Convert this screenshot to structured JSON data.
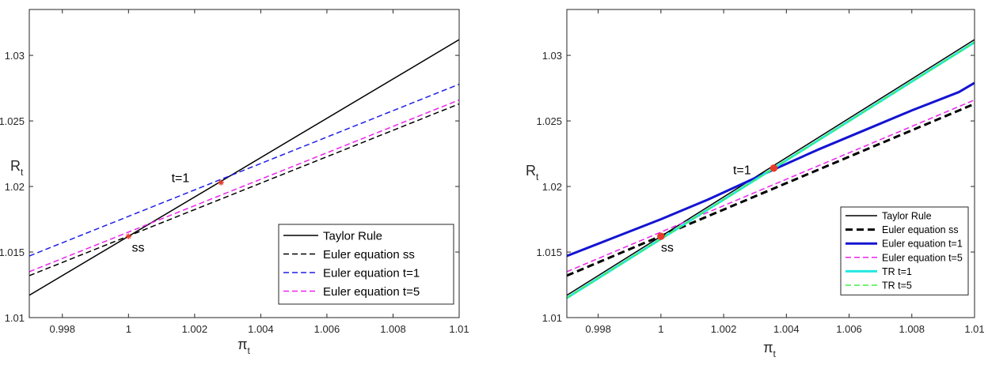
{
  "chart_data": [
    {
      "type": "line",
      "xlabel": "π",
      "xlabel_sub": "t",
      "ylabel": "R",
      "ylabel_sub": "t",
      "xlim": [
        0.997,
        1.01
      ],
      "ylim": [
        1.01,
        1.0335
      ],
      "xticks": [
        0.998,
        1,
        1.002,
        1.004,
        1.006,
        1.008,
        1.01
      ],
      "xtick_labels": [
        "0.998",
        "1",
        "1.002",
        "1.004",
        "1.006",
        "1.008",
        "1.01"
      ],
      "yticks": [
        1.01,
        1.015,
        1.02,
        1.025,
        1.03
      ],
      "ytick_labels": [
        "1.01",
        "1.015",
        "1.02",
        "1.025",
        "1.03"
      ],
      "grid": false,
      "legend_position": "bottom-right",
      "series": [
        {
          "name": "Taylor Rule",
          "color": "#000000",
          "style": "solid",
          "width": 1.5,
          "x": [
            0.997,
            1.01
          ],
          "y": [
            1.0117,
            1.0312
          ]
        },
        {
          "name": "Euler equation ss",
          "color": "#000000",
          "style": "dashed",
          "width": 1.5,
          "x": [
            0.997,
            1.01
          ],
          "y": [
            1.0132,
            1.0263
          ]
        },
        {
          "name": "Euler equation t=1",
          "color": "#1f1fe6",
          "style": "dashed",
          "width": 1.5,
          "x": [
            0.997,
            1.01
          ],
          "y": [
            1.0147,
            1.0278
          ]
        },
        {
          "name": "Euler equation t=5",
          "color": "#ee22ee",
          "style": "dashed",
          "width": 1.5,
          "x": [
            0.997,
            1.01
          ],
          "y": [
            1.0135,
            1.0266
          ]
        }
      ],
      "markers": [
        {
          "x": 1.0,
          "y": 1.0162,
          "color": "#e8392b",
          "symbol": "asterisk"
        },
        {
          "x": 1.0028,
          "y": 1.0203,
          "color": "#e8392b",
          "symbol": "asterisk"
        }
      ],
      "annotations": [
        {
          "text": "ss",
          "x": 1.0001,
          "y": 1.0154
        },
        {
          "text": "t=1",
          "x": 1.0013,
          "y": 1.0207
        }
      ]
    },
    {
      "type": "line",
      "xlabel": "π",
      "xlabel_sub": "t",
      "ylabel": "R",
      "ylabel_sub": "t",
      "xlim": [
        0.997,
        1.01
      ],
      "ylim": [
        1.01,
        1.0335
      ],
      "xticks": [
        0.998,
        1,
        1.002,
        1.004,
        1.006,
        1.008,
        1.01
      ],
      "xtick_labels": [
        "0.998",
        "1",
        "1.002",
        "1.004",
        "1.006",
        "1.008",
        "1.01"
      ],
      "yticks": [
        1.01,
        1.015,
        1.02,
        1.025,
        1.03
      ],
      "ytick_labels": [
        "1.01",
        "1.015",
        "1.02",
        "1.025",
        "1.03"
      ],
      "grid": false,
      "legend_position": "bottom-right",
      "series": [
        {
          "name": "Taylor Rule",
          "color": "#000000",
          "style": "solid",
          "width": 1.5,
          "x": [
            0.997,
            1.01
          ],
          "y": [
            1.0117,
            1.0312
          ]
        },
        {
          "name": "Euler equation ss",
          "color": "#000000",
          "style": "dashed",
          "width": 3,
          "x": [
            0.997,
            1.01
          ],
          "y": [
            1.0132,
            1.0263
          ]
        },
        {
          "name": "Euler equation t=1",
          "color": "#1414d2",
          "style": "curve",
          "width": 3,
          "x": [
            0.997,
            0.9985,
            1.0,
            1.0015,
            1.0036,
            1.005,
            1.0065,
            1.008,
            1.0095,
            1.01
          ],
          "y": [
            1.0147,
            1.0161,
            1.0175,
            1.019,
            1.0213,
            1.0228,
            1.0243,
            1.0258,
            1.0272,
            1.0279
          ]
        },
        {
          "name": "Euler equation t=5",
          "color": "#ee22ee",
          "style": "dashed",
          "width": 1.5,
          "x": [
            0.997,
            1.01
          ],
          "y": [
            1.0135,
            1.0266
          ]
        },
        {
          "name": "TR t=1",
          "color": "#22e8e0",
          "style": "solid",
          "width": 3,
          "x": [
            0.997,
            1.01
          ],
          "y": [
            1.0115,
            1.031
          ]
        },
        {
          "name": "TR t=5",
          "color": "#44ee44",
          "style": "dashed",
          "width": 1.5,
          "x": [
            0.997,
            1.01
          ],
          "y": [
            1.0115,
            1.031
          ]
        }
      ],
      "markers": [
        {
          "x": 1.0,
          "y": 1.0162,
          "color": "#e8392b",
          "symbol": "dot"
        },
        {
          "x": 1.0036,
          "y": 1.0214,
          "color": "#e8392b",
          "symbol": "dot"
        }
      ],
      "annotations": [
        {
          "text": "ss",
          "x": 1.0,
          "y": 1.0154
        },
        {
          "text": "t=1",
          "x": 1.0023,
          "y": 1.0213
        }
      ]
    }
  ]
}
